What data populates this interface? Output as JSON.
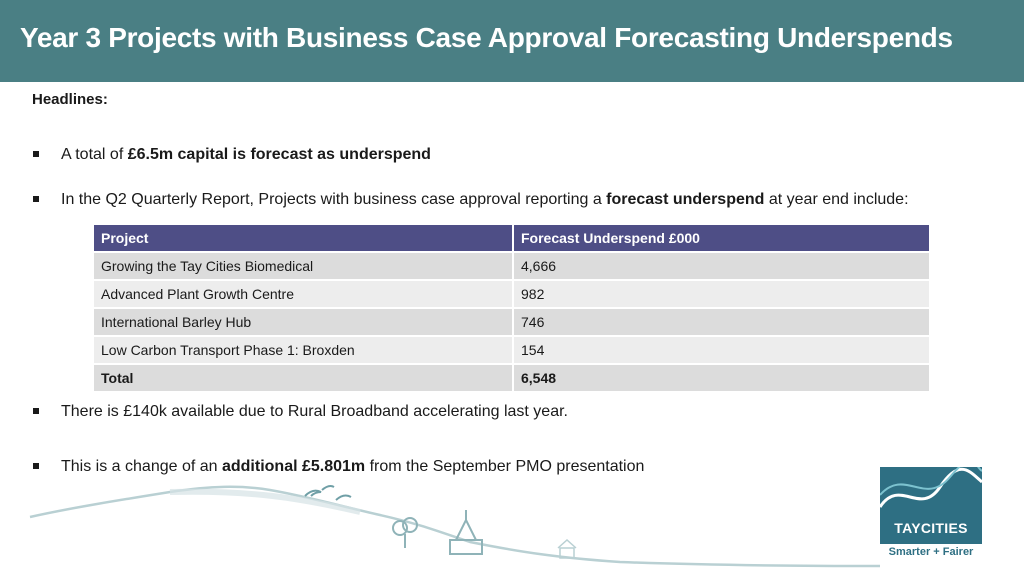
{
  "header": {
    "title": "Year 3 Projects with Business Case Approval Forecasting Underspends"
  },
  "headlines_label": "Headlines:",
  "bullets": [
    {
      "pre": "A total of ",
      "bold": "£6.5m capital is forecast as underspend",
      "post": ""
    },
    {
      "pre": "In the Q2 Quarterly Report, Projects with business case approval reporting a ",
      "bold": "forecast underspend",
      "post": " at year end include:"
    },
    {
      "pre": "There is £140k available due to Rural Broadband accelerating last year.",
      "bold": "",
      "post": ""
    },
    {
      "pre": "This is a change of an ",
      "bold": "additional £5.801m",
      "post": " from the September PMO presentation"
    }
  ],
  "table": {
    "headers": [
      "Project",
      "Forecast Underspend £000"
    ],
    "rows": [
      [
        "Growing the Tay Cities Biomedical",
        "4,666"
      ],
      [
        "Advanced Plant Growth Centre",
        "982"
      ],
      [
        "International Barley Hub",
        "746"
      ],
      [
        "Low Carbon Transport Phase 1: Broxden",
        "154"
      ]
    ],
    "total": [
      "Total",
      "6,548"
    ]
  },
  "logo": {
    "name": "TAYCITIES",
    "tagline": "Smarter + Fairer"
  },
  "colors": {
    "title_bar": "#4a7f84",
    "table_header": "#4e4e86",
    "logo": "#2e6f83"
  }
}
